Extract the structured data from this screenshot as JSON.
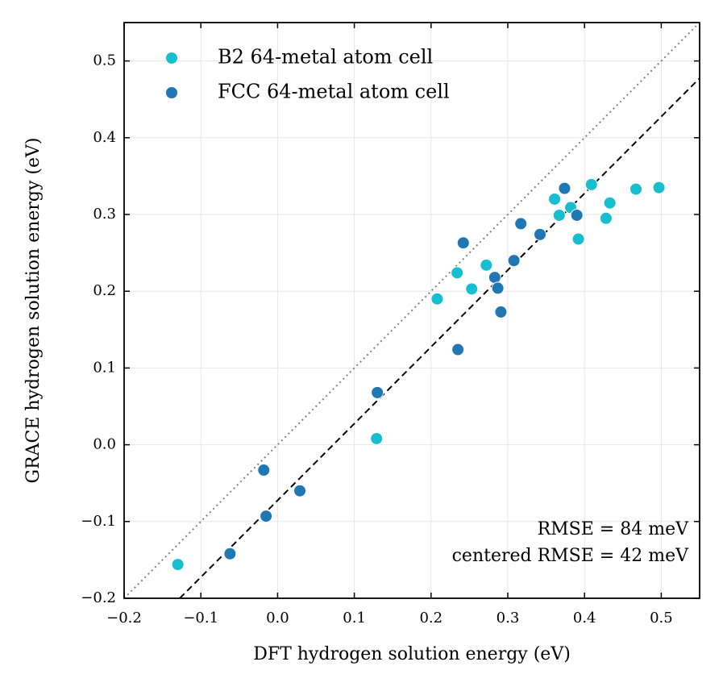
{
  "chart_data": {
    "type": "scatter",
    "x_label": "DFT hydrogen solution energy (eV)",
    "y_label": "GRACE hydrogen solution energy (eV)",
    "xlim": [
      -0.2,
      0.55
    ],
    "ylim": [
      -0.2,
      0.55
    ],
    "xticks": [
      {
        "value": -0.2,
        "label": "−0.2"
      },
      {
        "value": -0.1,
        "label": "−0.1"
      },
      {
        "value": 0,
        "label": "0.0"
      },
      0.1,
      0.2,
      0.3,
      0.4,
      0.5
    ],
    "yticks": [
      {
        "value": -0.2,
        "label": "−0.2"
      },
      {
        "value": -0.1,
        "label": "−0.1"
      },
      {
        "value": 0,
        "label": "0.0"
      },
      0.1,
      0.2,
      0.3,
      0.4,
      0.5
    ],
    "grid": true,
    "legend": "upper left",
    "reference_lines": [
      {
        "style": "dotted",
        "color": "#808080",
        "x": [
          -0.2,
          0.55
        ],
        "y": [
          -0.2,
          0.55
        ]
      },
      {
        "style": "dashed",
        "color": "#000000",
        "x": [
          -0.1275,
          0.55
        ],
        "y": [
          -0.2,
          0.4775
        ]
      }
    ],
    "annotations": [
      "RMSE = 84 meV",
      "centered RMSE = 42 meV"
    ],
    "series": [
      {
        "name": "B2 64-metal atom cell",
        "color": "#17becf",
        "x": [
          -0.13,
          0.129,
          0.208,
          0.234,
          0.253,
          0.272,
          0.361,
          0.367,
          0.382,
          0.392,
          0.409,
          0.428,
          0.433,
          0.467,
          0.497
        ],
        "values": [
          -0.156,
          0.008,
          0.19,
          0.224,
          0.203,
          0.234,
          0.32,
          0.299,
          0.309,
          0.268,
          0.339,
          0.295,
          0.315,
          0.333,
          0.335
        ]
      },
      {
        "name": "FCC 64-metal atom cell",
        "color": "#1f77b4",
        "x": [
          -0.062,
          -0.018,
          -0.015,
          0.029,
          0.13,
          0.235,
          0.242,
          0.283,
          0.287,
          0.291,
          0.308,
          0.317,
          0.342,
          0.374,
          0.39
        ],
        "values": [
          -0.142,
          -0.033,
          -0.093,
          -0.06,
          0.068,
          0.124,
          0.263,
          0.218,
          0.204,
          0.173,
          0.24,
          0.288,
          0.274,
          0.334,
          0.299
        ]
      }
    ]
  }
}
